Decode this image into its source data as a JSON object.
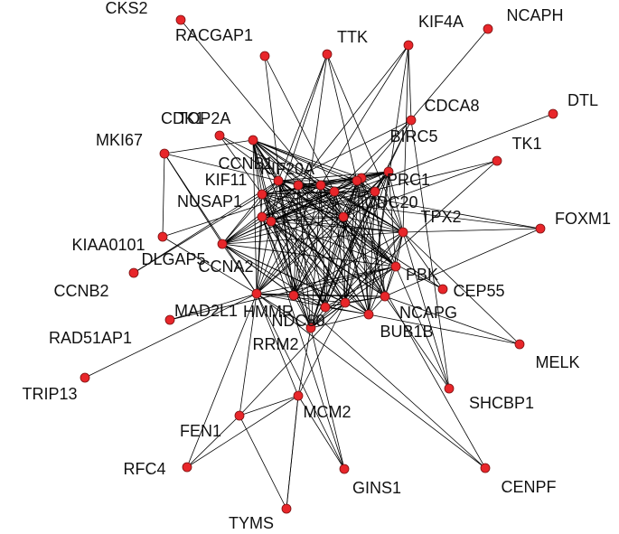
{
  "nodes": [
    {
      "label": "CKS2"
    },
    {
      "label": "RACGAP1"
    },
    {
      "label": "TTK"
    },
    {
      "label": "KIF4A"
    },
    {
      "label": "NCAPH"
    },
    {
      "label": "CDCA8"
    },
    {
      "label": "DTL"
    },
    {
      "label": "TK1"
    },
    {
      "label": "BIRC5"
    },
    {
      "label": "PRC1"
    },
    {
      "label": "CDC20"
    },
    {
      "label": "KIF20A"
    },
    {
      "label": "MKI67"
    },
    {
      "label": "CDK1"
    },
    {
      "label": "TOP2A"
    },
    {
      "label": "CCNB1"
    },
    {
      "label": "KIF11"
    },
    {
      "label": "NUSAP1"
    },
    {
      "label": "KIAA0101"
    },
    {
      "label": "DLGAP5"
    },
    {
      "label": "CCNA2"
    },
    {
      "label": "CCNB2"
    },
    {
      "label": "FOXM1"
    },
    {
      "label": "TPX2"
    },
    {
      "label": "PBK"
    },
    {
      "label": "CEP55"
    },
    {
      "label": "NCAPG"
    },
    {
      "label": "BUB1B"
    },
    {
      "label": "MAD2L1"
    },
    {
      "label": "HMMR"
    },
    {
      "label": "NDC80"
    },
    {
      "label": "RAD51AP1"
    },
    {
      "label": "RRM2"
    },
    {
      "label": "MELK"
    },
    {
      "label": "TRIP13"
    },
    {
      "label": "SHCBP1"
    },
    {
      "label": "MCM2"
    },
    {
      "label": "FEN1"
    },
    {
      "label": "RFC4"
    },
    {
      "label": "GINS1"
    },
    {
      "label": "CENPF"
    },
    {
      "label": "TYMS"
    }
  ]
}
